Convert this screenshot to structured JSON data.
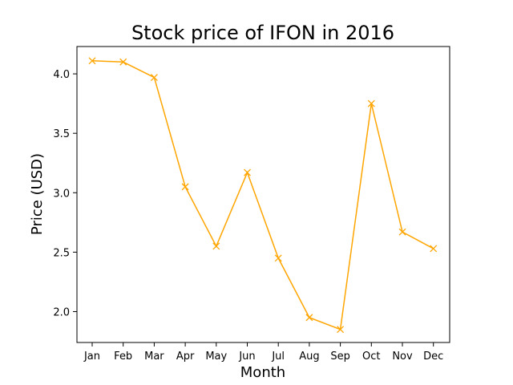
{
  "chart_data": {
    "type": "line",
    "title": "Stock price of IFON in 2016",
    "xlabel": "Month",
    "ylabel": "Price (USD)",
    "categories": [
      "Jan",
      "Feb",
      "Mar",
      "Apr",
      "May",
      "Jun",
      "Jul",
      "Aug",
      "Sep",
      "Oct",
      "Nov",
      "Dec"
    ],
    "values": [
      4.11,
      4.1,
      3.97,
      3.05,
      2.55,
      3.17,
      2.45,
      1.95,
      1.85,
      3.75,
      2.67,
      2.53
    ],
    "yticks": [
      "2.0",
      "2.5",
      "3.0",
      "3.5",
      "4.0"
    ],
    "ylim": [
      1.74,
      4.23
    ],
    "marker": "x",
    "line_color": "#ffa500",
    "grid": false,
    "legend": false
  }
}
